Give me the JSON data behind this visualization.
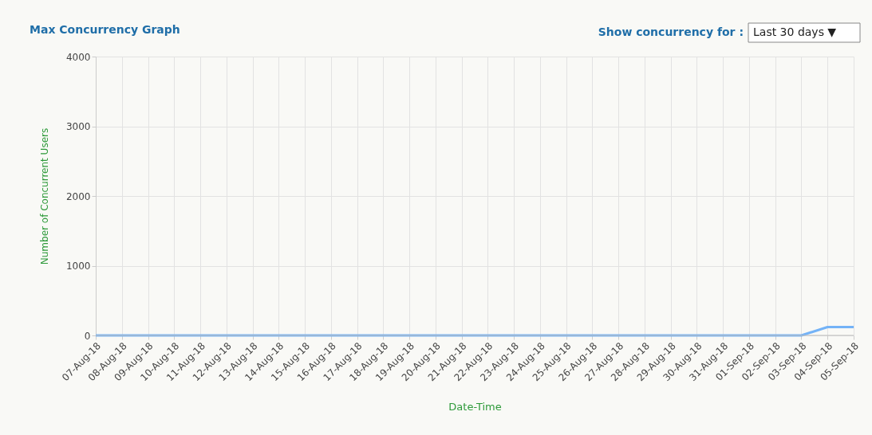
{
  "chart_data": {
    "type": "line",
    "title": "Max Concurrency Graph",
    "xlabel": "Date-Time",
    "ylabel": "Number of Concurrent Users",
    "annotations": [
      "Show concurrency for :",
      "Last 30 days ▼"
    ],
    "categories": [
      "07-Aug-18",
      "08-Aug-18",
      "09-Aug-18",
      "10-Aug-18",
      "11-Aug-18",
      "12-Aug-18",
      "13-Aug-18",
      "14-Aug-18",
      "15-Aug-18",
      "16-Aug-18",
      "17-Aug-18",
      "18-Aug-18",
      "19-Aug-18",
      "20-Aug-18",
      "21-Aug-18",
      "22-Aug-18",
      "23-Aug-18",
      "24-Aug-18",
      "25-Aug-18",
      "26-Aug-18",
      "27-Aug-18",
      "28-Aug-18",
      "29-Aug-18",
      "30-Aug-18",
      "31-Aug-18",
      "01-Sep-18",
      "02-Sep-18",
      "03-Sep-18",
      "04-Sep-18",
      "05-Sep-18"
    ],
    "series": [
      {
        "color": "#74b3f7",
        "values": [
          0,
          0,
          0,
          0,
          0,
          0,
          0,
          0,
          0,
          0,
          0,
          0,
          0,
          0,
          0,
          0,
          0,
          0,
          0,
          0,
          0,
          0,
          0,
          0,
          0,
          0,
          0,
          0,
          120,
          120
        ]
      }
    ],
    "ylim": [
      0,
      4000
    ],
    "yticks": [
      0,
      1000,
      2000,
      3000,
      4000
    ],
    "grid": true,
    "marker": "none",
    "line_style": "solid"
  }
}
